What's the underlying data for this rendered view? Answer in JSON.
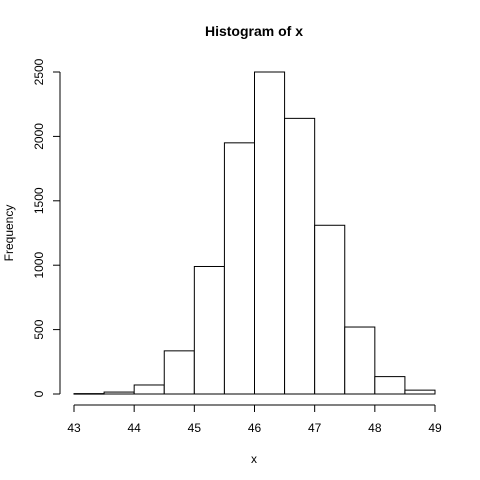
{
  "chart_data": {
    "type": "bar",
    "title": "Histogram of x",
    "xlabel": "x",
    "ylabel": "Frequency",
    "bins": [
      {
        "x0": 43.0,
        "x1": 43.5,
        "count": 3
      },
      {
        "x0": 43.5,
        "x1": 44.0,
        "count": 15
      },
      {
        "x0": 44.0,
        "x1": 44.5,
        "count": 70
      },
      {
        "x0": 44.5,
        "x1": 45.0,
        "count": 335
      },
      {
        "x0": 45.0,
        "x1": 45.5,
        "count": 990
      },
      {
        "x0": 45.5,
        "x1": 46.0,
        "count": 1950
      },
      {
        "x0": 46.0,
        "x1": 46.5,
        "count": 2500
      },
      {
        "x0": 46.5,
        "x1": 47.0,
        "count": 2140
      },
      {
        "x0": 47.0,
        "x1": 47.5,
        "count": 1310
      },
      {
        "x0": 47.5,
        "x1": 48.0,
        "count": 520
      },
      {
        "x0": 48.0,
        "x1": 48.5,
        "count": 135
      },
      {
        "x0": 48.5,
        "x1": 49.0,
        "count": 30
      }
    ],
    "xlim": [
      43,
      49
    ],
    "ylim": [
      0,
      2500
    ],
    "xticks": [
      "43",
      "44",
      "45",
      "46",
      "47",
      "48",
      "49"
    ],
    "yticks": [
      "0",
      "500",
      "1000",
      "1500",
      "2000",
      "2500"
    ],
    "grid": false,
    "legend": "none"
  }
}
